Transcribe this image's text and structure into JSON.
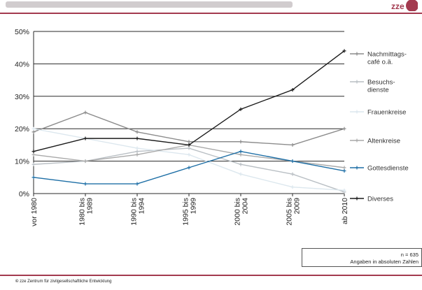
{
  "header": {
    "logo_text": "zze"
  },
  "footer": {
    "copyright_symbol": "©",
    "copyright_text": "zze Zentrum für zivilgesellschaftliche Entwicklung"
  },
  "note": {
    "n_label": "n = 635",
    "line2": "Angaben in absoluten Zahlen"
  },
  "colors": {
    "accent": "#a33a4f"
  },
  "chart_data": {
    "type": "line",
    "title": "",
    "xlabel": "",
    "ylabel": "",
    "categories": [
      "vor 1980",
      "1980 bis 1989",
      "1990 bis 1994",
      "1995 bis 1999",
      "2000 bis 2004",
      "2005 bis 2009",
      "ab 2010"
    ],
    "category_lines": [
      [
        "vor 1980"
      ],
      [
        "1980 bis",
        "1989"
      ],
      [
        "1990 bis",
        "1994"
      ],
      [
        "1995 bis",
        "1999"
      ],
      [
        "2000 bis",
        "2004"
      ],
      [
        "2005 bis",
        "2009"
      ],
      [
        "ab 2010"
      ]
    ],
    "ylim": [
      0,
      50
    ],
    "yticks": [
      0,
      10,
      20,
      30,
      40,
      50
    ],
    "ytick_labels": [
      "0%",
      "10%",
      "20%",
      "30%",
      "40%",
      "50%"
    ],
    "grid": true,
    "legend_position": "right",
    "series": [
      {
        "name": "Nachmittags-café o.ä.",
        "name_lines": [
          "Nachmittags-",
          "café o.ä."
        ],
        "color": "#8c8c8c",
        "marker": "plus",
        "values": [
          19,
          25,
          19,
          16,
          16,
          15,
          20
        ]
      },
      {
        "name": "Besuchs-dienste",
        "name_lines": [
          "Besuchs-",
          "dienste"
        ],
        "color": "#b9bfc4",
        "marker": "plus",
        "values": [
          9,
          10,
          13,
          14,
          9,
          6,
          0.5
        ]
      },
      {
        "name": "Frauenkreise",
        "name_lines": [
          "Frauenkreise"
        ],
        "color": "#dce7ee",
        "marker": "plus",
        "values": [
          20,
          17,
          14,
          12,
          6,
          2,
          1
        ]
      },
      {
        "name": "Altenkreise",
        "name_lines": [
          "Altenkreise"
        ],
        "color": "#a9a9a9",
        "marker": "plus",
        "values": [
          12,
          10,
          12,
          15,
          12,
          10,
          8
        ]
      },
      {
        "name": "Gottesdienste",
        "name_lines": [
          "Gottesdienste"
        ],
        "color": "#1e6fa6",
        "marker": "plus",
        "values": [
          5,
          3,
          3,
          8,
          13,
          10,
          7
        ]
      },
      {
        "name": "Diverses",
        "name_lines": [
          "Diverses"
        ],
        "color": "#1a1a1a",
        "marker": "plus",
        "values": [
          13,
          17,
          17,
          15,
          26,
          32,
          44
        ]
      }
    ]
  }
}
